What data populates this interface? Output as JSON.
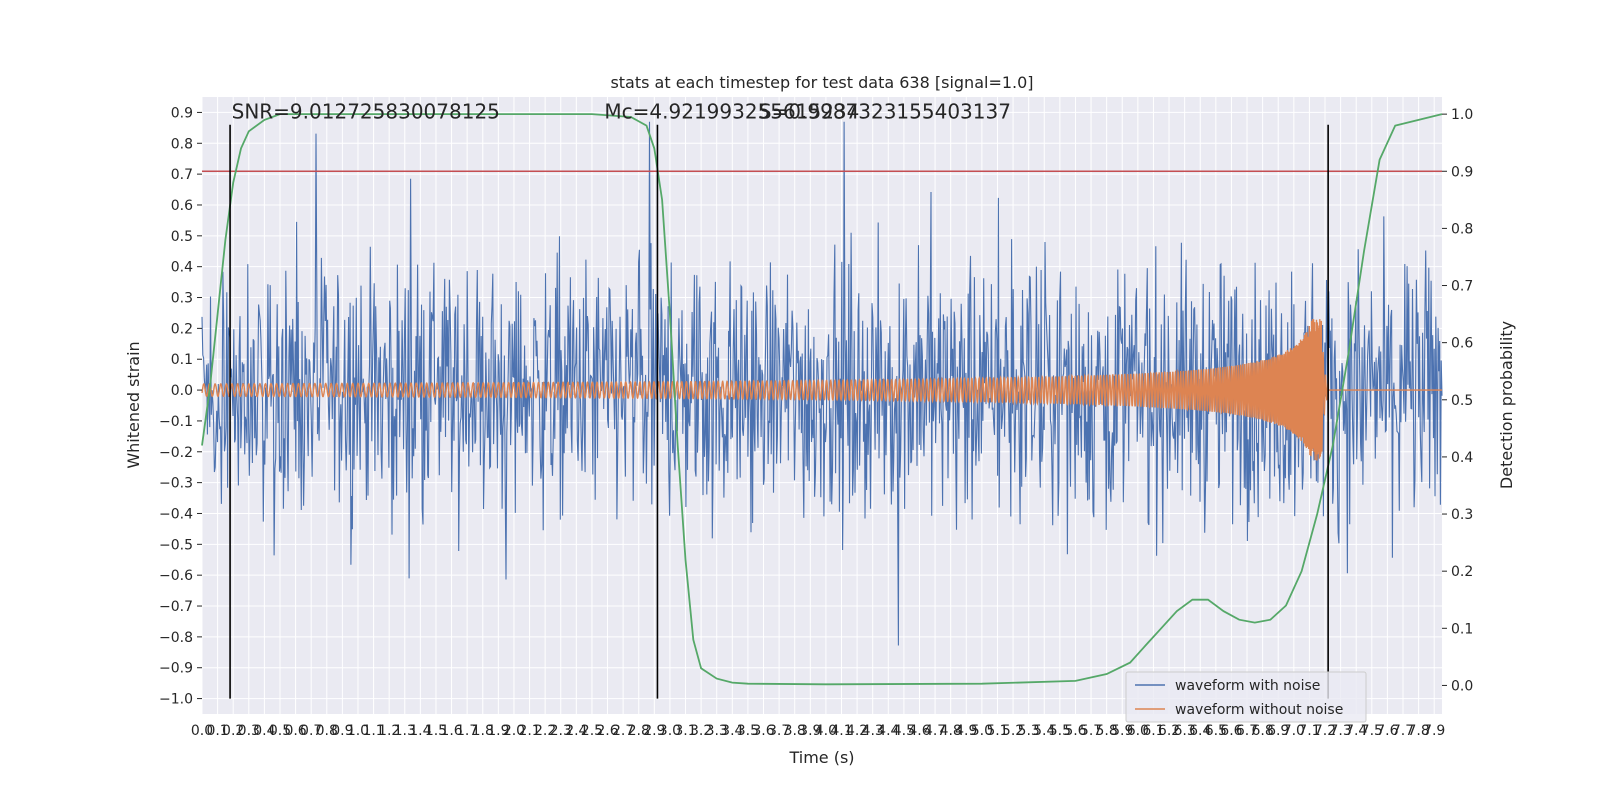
{
  "chart_data": {
    "type": "line",
    "title": "stats at each timestep for test data 638 [signal=1.0]",
    "xlabel": "Time (s)",
    "ylabel_left": "Whitened strain",
    "ylabel_right": "Detection probability",
    "xlim": [
      0.0,
      7.95
    ],
    "ylim_left": [
      -1.05,
      0.95
    ],
    "ylim_right": [
      -0.05,
      1.03
    ],
    "x_ticks": [
      0.0,
      0.1,
      0.2,
      0.3,
      0.4,
      0.5,
      0.6,
      0.7,
      0.8,
      0.9,
      1.0,
      1.1,
      1.2,
      1.3,
      1.4,
      1.5,
      1.6,
      1.7,
      1.8,
      1.9,
      2.0,
      2.1,
      2.2,
      2.3,
      2.4,
      2.5,
      2.6,
      2.7,
      2.8,
      2.9,
      3.0,
      3.1,
      3.2,
      3.3,
      3.4,
      3.5,
      3.6,
      3.7,
      3.8,
      3.9,
      4.0,
      4.1,
      4.2,
      4.3,
      4.4,
      4.5,
      4.6,
      4.7,
      4.8,
      4.9,
      5.0,
      5.1,
      5.2,
      5.3,
      5.4,
      5.5,
      5.6,
      5.7,
      5.8,
      5.9,
      6.0,
      6.1,
      6.2,
      6.3,
      6.4,
      6.5,
      6.6,
      6.7,
      6.8,
      6.9,
      7.0,
      7.1,
      7.2,
      7.3,
      7.4,
      7.5,
      7.6,
      7.7,
      7.8,
      7.9
    ],
    "x_tick_labels": [
      "0.0",
      "0.1",
      "0.2",
      "0.3",
      "0.4",
      "0.5",
      "0.6",
      "0.7",
      "0.8",
      "0.9",
      "1.0",
      "1.1",
      "1.2",
      "1.3",
      "1.4",
      "1.5",
      "1.6",
      "1.7",
      "1.8",
      "1.9",
      "2.0",
      "2.1",
      "2.2",
      "2.3",
      "2.4",
      "2.5",
      "2.6",
      "2.7",
      "2.8",
      "2.9",
      "3.0",
      "3.1",
      "3.2",
      "3.3",
      "3.4",
      "3.5",
      "3.6",
      "3.7",
      "3.8",
      "3.9",
      "4.0",
      "4.1",
      "4.2",
      "4.3",
      "4.4",
      "4.5",
      "4.6",
      "4.7",
      "4.8",
      "4.9",
      "5.0",
      "5.1",
      "5.2",
      "5.3",
      "5.4",
      "5.5",
      "5.6",
      "5.7",
      "5.8",
      "5.9",
      "6.0",
      "6.1",
      "6.2",
      "6.3",
      "6.4",
      "6.5",
      "6.6",
      "6.7",
      "6.8",
      "6.9",
      "7.0",
      "7.1",
      "7.2",
      "7.3",
      "7.4",
      "7.5",
      "7.6",
      "7.7",
      "7.8",
      "7.9"
    ],
    "y_left_ticks": [
      0.9,
      0.8,
      0.7,
      0.6,
      0.5,
      0.4,
      0.3,
      0.2,
      0.1,
      0.0,
      -0.1,
      -0.2,
      -0.3,
      -0.4,
      -0.5,
      -0.6,
      -0.7,
      -0.8,
      -0.9,
      -1.0
    ],
    "y_left_tick_labels": [
      "0.9",
      "0.8",
      "0.7",
      "0.6",
      "0.5",
      "0.4",
      "0.3",
      "0.2",
      "0.1",
      "0.0",
      "−0.1",
      "−0.2",
      "−0.3",
      "−0.4",
      "−0.5",
      "−0.6",
      "−0.7",
      "−0.8",
      "−0.9",
      "−1.0"
    ],
    "y_right_ticks": [
      1.0,
      0.9,
      0.8,
      0.7,
      0.6,
      0.5,
      0.4,
      0.3,
      0.2,
      0.1,
      0.0
    ],
    "y_right_tick_labels": [
      "1.0",
      "0.9",
      "0.8",
      "0.7",
      "0.6",
      "0.5",
      "0.4",
      "0.3",
      "0.2",
      "0.1",
      "0.0"
    ],
    "threshold": 0.9,
    "vertical_lines_x": [
      0.18,
      2.92,
      7.22
    ],
    "vertical_lines_ymin": -1.0,
    "vertical_lines_ymax": 0.86,
    "annotations": [
      {
        "text": "SNR=9.012725830078125",
        "x": 0.19,
        "y": 0.88
      },
      {
        "text": "Mᴄ=4.921993255615234",
        "x": 2.58,
        "y": 0.88
      },
      {
        "text": "S=0.9987323155403137",
        "x": 3.57,
        "y": 0.88
      }
    ],
    "legend_position": "lower-right",
    "series": [
      {
        "name": "waveform with noise",
        "color": "#4c72b0",
        "axis": "left",
        "description": "dense whitened strain noise between roughly -1.0 and 0.88"
      },
      {
        "name": "waveform without noise",
        "color": "#dd8452",
        "axis": "left",
        "chirp": {
          "start_amp": 0.02,
          "peak_amp": 0.23,
          "merger_time": 7.18,
          "ringdown_end": 7.22
        }
      },
      {
        "name": "detection probability",
        "color": "#55a868",
        "axis": "right",
        "x": [
          0.0,
          0.05,
          0.1,
          0.15,
          0.2,
          0.25,
          0.3,
          0.4,
          0.5,
          0.6,
          0.8,
          1.0,
          2.5,
          2.75,
          2.85,
          2.9,
          2.95,
          3.0,
          3.05,
          3.1,
          3.15,
          3.2,
          3.3,
          3.4,
          3.5,
          4.0,
          5.0,
          5.6,
          5.8,
          5.95,
          6.05,
          6.15,
          6.25,
          6.35,
          6.45,
          6.55,
          6.65,
          6.75,
          6.85,
          6.95,
          7.05,
          7.15,
          7.25,
          7.35,
          7.45,
          7.55,
          7.65,
          7.95
        ],
        "values": [
          0.42,
          0.52,
          0.65,
          0.78,
          0.88,
          0.94,
          0.97,
          0.99,
          1.0,
          1.0,
          1.0,
          1.0,
          1.0,
          0.995,
          0.98,
          0.94,
          0.85,
          0.65,
          0.42,
          0.22,
          0.08,
          0.03,
          0.012,
          0.005,
          0.003,
          0.002,
          0.003,
          0.008,
          0.02,
          0.04,
          0.07,
          0.1,
          0.13,
          0.15,
          0.15,
          0.13,
          0.115,
          0.11,
          0.115,
          0.14,
          0.2,
          0.3,
          0.42,
          0.58,
          0.76,
          0.92,
          0.98,
          1.0
        ]
      }
    ]
  }
}
